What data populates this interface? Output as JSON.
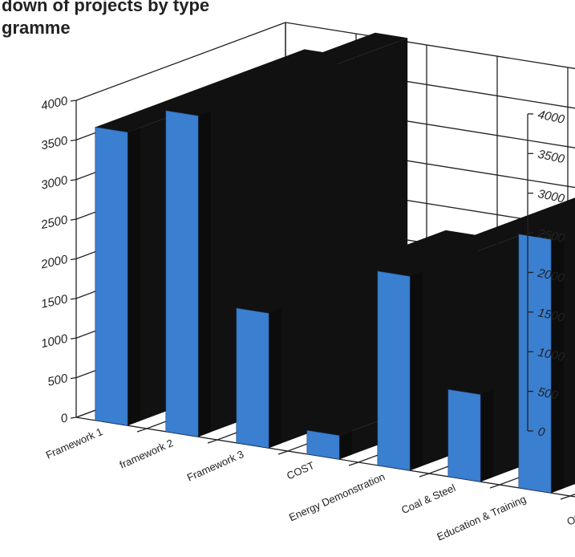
{
  "title_lines": [
    "down of projects by type",
    "gramme"
  ],
  "chart_data": {
    "type": "bar",
    "title": "down of projects by type gramme",
    "categories": [
      "Framework 1",
      "framework 2",
      "Framework 3",
      "COST",
      "Energy Demonstration",
      "Coal & Steel",
      "Education & Training",
      "Others"
    ],
    "series": [
      {
        "values": [
          3700,
          4050,
          1700,
          300,
          2450,
          1100,
          3200,
          4200
        ]
      }
    ],
    "ylim": [
      0,
      4000
    ],
    "yticks": [
      0,
      500,
      1000,
      1500,
      2000,
      2500,
      3000,
      3500,
      4000
    ],
    "bar_color": "#3a7fd0",
    "shadow_color": "#111111",
    "grid": true
  }
}
